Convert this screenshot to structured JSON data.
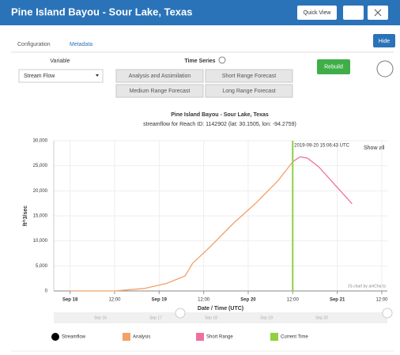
{
  "header": {
    "title": "Pine Island Bayou - Sour Lake, Texas",
    "button": "Quick View"
  },
  "tabs": [
    "Configuration",
    "Metadata"
  ],
  "hide_button": "Hide",
  "variable": {
    "label": "Variable",
    "selected": "Stream Flow"
  },
  "time_series": {
    "label": "Time Series",
    "options": [
      "Analysis and Assimilation",
      "Short Range Forecast",
      "Medium Range Forecast",
      "Long Range Forecast"
    ]
  },
  "rebuild_button": "Rebuild",
  "chart_data": {
    "type": "line",
    "title": "Pine Island Bayou - Sour Lake, Texas",
    "subtitle": "streamflow for Reach ID: 1142902 (lat: 30.1505, lon: -94.2759)",
    "y_label": "ft^3/sec",
    "x_label": "Date / Time (UTC)",
    "xlim": [
      -4.4,
      85.5
    ],
    "ylim": [
      0,
      30000
    ],
    "xticks": [
      {
        "value": 0,
        "label": "Sep 18"
      },
      {
        "value": 12,
        "label": "12:00"
      },
      {
        "value": 24,
        "label": "Sep 19"
      },
      {
        "value": 36,
        "label": "12:00"
      },
      {
        "value": 48,
        "label": "Sep 20"
      },
      {
        "value": 60,
        "label": "12:00"
      },
      {
        "value": 72,
        "label": "Sep 21"
      },
      {
        "value": 84,
        "label": "12:00"
      }
    ],
    "yticks": [
      0,
      {
        "value": 5000,
        "label": "5,000"
      },
      {
        "value": 10000,
        "label": "10,000"
      },
      {
        "value": 15000,
        "label": "15,000"
      },
      {
        "value": 20000,
        "label": "20,000"
      },
      {
        "value": 25000,
        "label": "25,000"
      },
      {
        "value": 30000,
        "label": "30,000"
      }
    ],
    "grid": true,
    "series": [
      {
        "name": "Streamflow",
        "color": "#000000",
        "x": [],
        "values": []
      },
      {
        "name": "Analysis",
        "color": "#f4a06a",
        "x": [
          0,
          12,
          20,
          26,
          31,
          33,
          38,
          44,
          50,
          56,
          60
        ],
        "values": [
          0,
          0,
          500,
          1500,
          3000,
          5500,
          9000,
          13500,
          17500,
          22000,
          25800
        ]
      },
      {
        "name": "Short Range",
        "color": "#f06fa0",
        "x": [
          60,
          62,
          64,
          67,
          71,
          76
        ],
        "values": [
          25800,
          26800,
          26500,
          24800,
          21500,
          17400
        ]
      }
    ],
    "current_time": {
      "name": "Current Time",
      "color": "#8fd13f",
      "x": 60,
      "label": "2019-09-20 15:06:43 UTC"
    },
    "zoom_label": "Show all",
    "credit": "JS chart by amCharts",
    "navigator_labels": [
      "Sep 16",
      "Sep 17",
      "Sep 18",
      "Sep 19",
      "Sep 20"
    ]
  }
}
